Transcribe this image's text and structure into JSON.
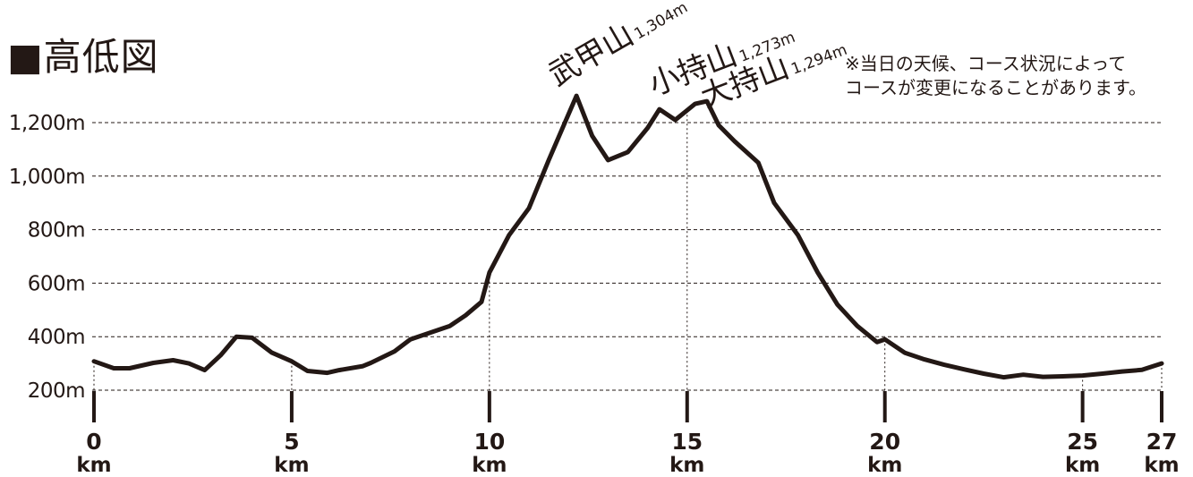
{
  "title": "■高低図",
  "note": {
    "line1": "※当日の天候、コース状況によって",
    "line2": "コースが変更になることがあります。"
  },
  "peaks": [
    {
      "name": "武甲山",
      "elevation": "1,304m",
      "x_km": 12.2
    },
    {
      "name": "小持山",
      "elevation": "1,273m",
      "x_km": 14.3
    },
    {
      "name": "大持山",
      "elevation": "1,294m",
      "x_km": 15.5
    }
  ],
  "colors": {
    "line": "#231815",
    "grid": "#231815",
    "text": "#231815"
  },
  "chart_data": {
    "type": "line",
    "title": "■高低図",
    "xlabel": "",
    "ylabel": "",
    "xlim": [
      0,
      27
    ],
    "ylim": [
      200,
      1300
    ],
    "grid": true,
    "y_ticks": [
      {
        "value": 200,
        "label": "200m"
      },
      {
        "value": 400,
        "label": "400m"
      },
      {
        "value": 600,
        "label": "600m"
      },
      {
        "value": 800,
        "label": "800m"
      },
      {
        "value": 1000,
        "label": "1,000m"
      },
      {
        "value": 1200,
        "label": "1,200m"
      }
    ],
    "x_ticks": [
      {
        "value": 0,
        "num": "0",
        "unit": "km"
      },
      {
        "value": 5,
        "num": "5",
        "unit": "km"
      },
      {
        "value": 10,
        "num": "10",
        "unit": "km"
      },
      {
        "value": 15,
        "num": "15",
        "unit": "km"
      },
      {
        "value": 20,
        "num": "20",
        "unit": "km"
      },
      {
        "value": 25,
        "num": "25",
        "unit": "km"
      },
      {
        "value": 27,
        "num": "27",
        "unit": "km"
      }
    ],
    "series": [
      {
        "x": [
          0,
          0.5,
          0.9,
          1.5,
          2.0,
          2.4,
          2.8,
          3.2,
          3.6,
          4.0,
          4.5,
          5.0,
          5.4,
          5.9,
          6.2,
          6.8,
          7.0,
          7.6,
          8.0,
          8.6,
          9.0,
          9.4,
          9.8,
          10.0,
          10.5,
          11.0,
          11.5,
          12.2,
          12.6,
          13.0,
          13.5,
          14.0,
          14.3,
          14.7,
          15.2,
          15.5,
          15.8,
          16.2,
          16.8,
          17.2,
          17.8,
          18.3,
          18.8,
          19.3,
          19.8,
          20.0,
          20.5,
          21.0,
          21.5,
          22.0,
          22.5,
          23.0,
          23.5,
          24.0,
          24.5,
          25.0,
          25.5,
          26.0,
          26.5,
          27.0
        ],
        "y": [
          308,
          282,
          282,
          302,
          312,
          300,
          275,
          330,
          400,
          396,
          340,
          308,
          272,
          265,
          275,
          290,
          302,
          345,
          390,
          420,
          440,
          480,
          530,
          640,
          780,
          880,
          1060,
          1300,
          1150,
          1060,
          1090,
          1180,
          1250,
          1210,
          1270,
          1280,
          1190,
          1130,
          1050,
          900,
          780,
          640,
          520,
          440,
          380,
          390,
          340,
          315,
          295,
          278,
          262,
          248,
          258,
          250,
          252,
          255,
          262,
          270,
          276,
          300
        ]
      }
    ]
  }
}
